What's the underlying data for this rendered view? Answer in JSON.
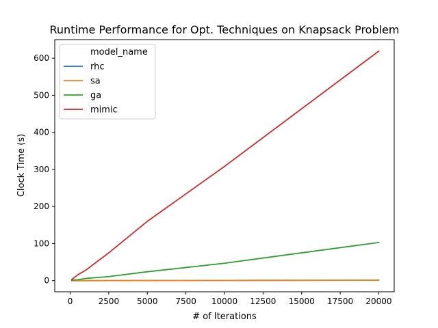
{
  "chart_data": {
    "type": "line",
    "title": "Runtime Performance for Opt. Techniques on Knapsack Problem",
    "xlabel": "# of Iterations",
    "ylabel": "Clock Time (s)",
    "xlim": [
      -1000,
      21000
    ],
    "ylim": [
      -30,
      650
    ],
    "xticks": [
      0,
      2500,
      5000,
      7500,
      10000,
      12500,
      15000,
      17500,
      20000
    ],
    "yticks": [
      0,
      100,
      200,
      300,
      400,
      500,
      600
    ],
    "grid": false,
    "legend": {
      "title": "model_name",
      "position": "top-left"
    },
    "x": [
      100,
      500,
      1000,
      2500,
      5000,
      10000,
      20000
    ],
    "series": [
      {
        "name": "rhc",
        "color": "#1f77b4",
        "values": [
          0.01,
          0.03,
          0.06,
          0.15,
          0.3,
          0.6,
          1.2
        ]
      },
      {
        "name": "sa",
        "color": "#ff7f0e",
        "values": [
          0.01,
          0.03,
          0.06,
          0.15,
          0.3,
          0.6,
          1.2
        ]
      },
      {
        "name": "ga",
        "color": "#2ca02c",
        "values": [
          1.5,
          2.5,
          6,
          11,
          24,
          47,
          103
        ]
      },
      {
        "name": "mimic",
        "color": "#d62728",
        "values": [
          3,
          16,
          28,
          75,
          160,
          308,
          619
        ]
      }
    ]
  }
}
